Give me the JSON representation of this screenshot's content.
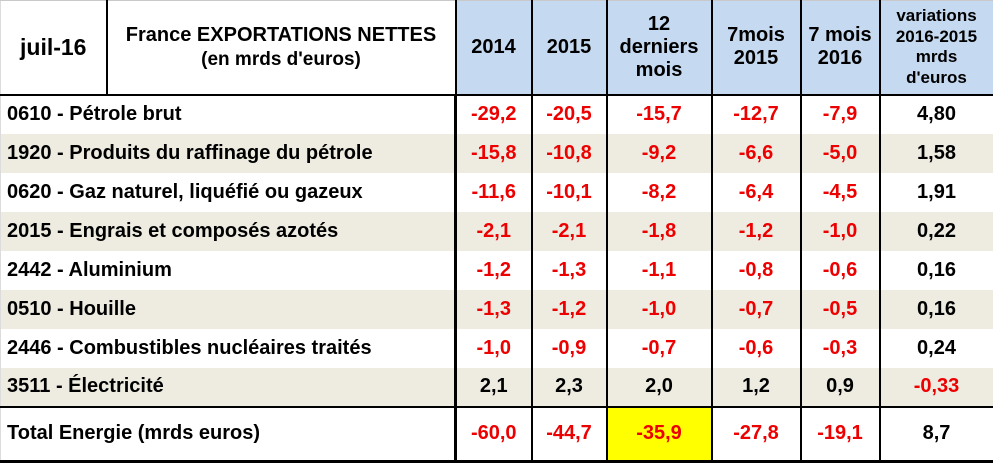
{
  "colors": {
    "header_bg": "#c5d9f1",
    "stripe_bg": "#eeece1",
    "negative_text": "#ec0000",
    "positive_text": "#000000",
    "highlight_bg": "#ffff00"
  },
  "chart_data": {
    "type": "table",
    "date_label": "juil-16",
    "title": "France EXPORTATIONS NETTES",
    "subtitle": "(en mrds d'euros)",
    "columns": [
      "2014",
      "2015",
      "12\nderniers\nmois",
      "7mois\n2015",
      "7 mois\n2016",
      "variations\n2016-2015\nmrds\nd'euros"
    ],
    "rows": [
      {
        "label": "0610 - Pétrole brut",
        "values": [
          "-29,2",
          "-20,5",
          "-15,7",
          "-12,7",
          "-7,9",
          "4,80"
        ]
      },
      {
        "label": "1920 - Produits du raffinage du pétrole",
        "values": [
          "-15,8",
          "-10,8",
          "-9,2",
          "-6,6",
          "-5,0",
          "1,58"
        ]
      },
      {
        "label": "0620 - Gaz naturel, liquéfié ou gazeux",
        "values": [
          "-11,6",
          "-10,1",
          "-8,2",
          "-6,4",
          "-4,5",
          "1,91"
        ]
      },
      {
        "label": "2015 - Engrais et composés azotés",
        "values": [
          "-2,1",
          "-2,1",
          "-1,8",
          "-1,2",
          "-1,0",
          "0,22"
        ]
      },
      {
        "label": "2442 - Aluminium",
        "values": [
          "-1,2",
          "-1,3",
          "-1,1",
          "-0,8",
          "-0,6",
          "0,16"
        ]
      },
      {
        "label": "0510 - Houille",
        "values": [
          "-1,3",
          "-1,2",
          "-1,0",
          "-0,7",
          "-0,5",
          "0,16"
        ]
      },
      {
        "label": "2446 - Combustibles nucléaires traités",
        "values": [
          "-1,0",
          "-0,9",
          "-0,7",
          "-0,6",
          "-0,3",
          "0,24"
        ]
      },
      {
        "label": "3511 - Électricité",
        "values": [
          "2,1",
          "2,3",
          "2,0",
          "1,2",
          "0,9",
          "-0,33"
        ]
      }
    ],
    "total": {
      "label": "Total Energie (mrds euros)",
      "values": [
        "-60,0",
        "-44,7",
        "-35,9",
        "-27,8",
        "-19,1",
        "8,7"
      ],
      "highlighted_column": "12 derniers mois",
      "highlighted_value": "-35,9"
    }
  }
}
